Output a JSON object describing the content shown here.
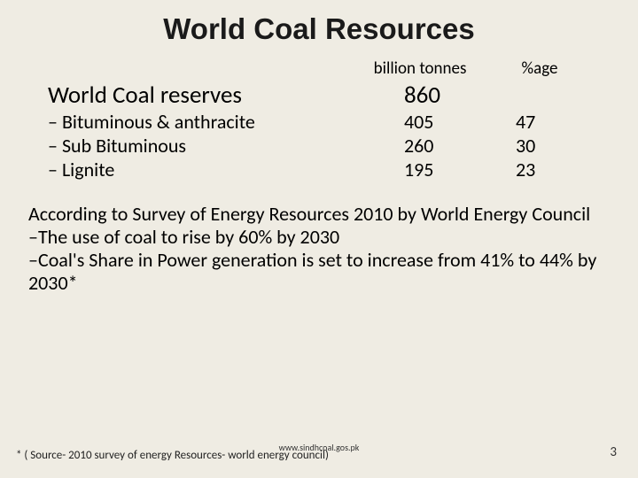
{
  "title": "World Coal Resources",
  "columns": {
    "tonnes": "billion tonnes",
    "pct": "%age"
  },
  "reserves": {
    "label": "World Coal reserves",
    "tonnes": "860"
  },
  "rows": [
    {
      "label": "Bituminous & anthracite",
      "tonnes": "405",
      "pct": "47"
    },
    {
      "label": "Sub Bituminous",
      "tonnes": "260",
      "pct": "30"
    },
    {
      "label": "Lignite",
      "tonnes": "195",
      "pct": "23"
    }
  ],
  "body": [
    "According to Survey of Energy Resources 2010 by World Energy Council",
    "–The use of coal to rise by  60% by 2030",
    "–Coal's Share in Power generation is set to increase from 41% to 44% by 2030*"
  ],
  "footnote": "* ( Source- 2010 survey of energy Resources- world energy council)",
  "url": "www.sindhcoal.gos.pk",
  "pagenum": "3",
  "styling": {
    "background_color": "#efece3",
    "text_color": "#000000",
    "title_fontsize_pt": 25,
    "header_fontsize_pt": 14,
    "reserves_fontsize_pt": 20,
    "row_fontsize_pt": 17,
    "body_fontsize_pt": 17,
    "footnote_fontsize_pt": 10,
    "pagenum_fontsize_pt": 11,
    "url_fontsize_pt": 8,
    "font_family": "Calibri",
    "title_font_family": "Arial Bold"
  }
}
